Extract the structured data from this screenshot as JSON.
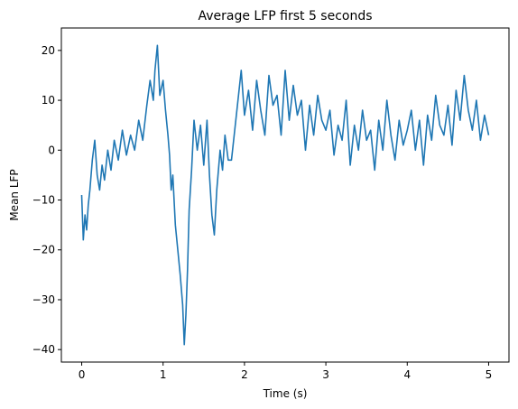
{
  "chart_data": {
    "type": "line",
    "title": "Average LFP first 5 seconds",
    "xlabel": "Time (s)",
    "ylabel": "Mean LFP",
    "xlim": [
      -0.25,
      5.25
    ],
    "ylim": [
      -42.5,
      24.5
    ],
    "xticks": [
      0,
      1,
      2,
      3,
      4,
      5
    ],
    "yticks": [
      -40,
      -30,
      -20,
      -10,
      0,
      10,
      20
    ],
    "grid": false,
    "legend": "none",
    "series": [
      {
        "color": "#1f77b4",
        "x": [
          0.0,
          0.02,
          0.04,
          0.06,
          0.08,
          0.1,
          0.13,
          0.16,
          0.19,
          0.22,
          0.25,
          0.28,
          0.32,
          0.36,
          0.4,
          0.45,
          0.5,
          0.55,
          0.6,
          0.65,
          0.7,
          0.75,
          0.8,
          0.84,
          0.88,
          0.9,
          0.93,
          0.96,
          1.0,
          1.03,
          1.06,
          1.08,
          1.1,
          1.12,
          1.15,
          1.18,
          1.21,
          1.24,
          1.26,
          1.28,
          1.3,
          1.32,
          1.35,
          1.38,
          1.42,
          1.46,
          1.5,
          1.54,
          1.57,
          1.6,
          1.63,
          1.66,
          1.7,
          1.73,
          1.76,
          1.8,
          1.84,
          1.88,
          1.92,
          1.96,
          2.0,
          2.05,
          2.1,
          2.15,
          2.2,
          2.25,
          2.3,
          2.35,
          2.4,
          2.45,
          2.5,
          2.55,
          2.6,
          2.65,
          2.7,
          2.75,
          2.8,
          2.85,
          2.9,
          2.95,
          3.0,
          3.05,
          3.1,
          3.15,
          3.2,
          3.25,
          3.3,
          3.35,
          3.4,
          3.45,
          3.5,
          3.55,
          3.6,
          3.65,
          3.7,
          3.75,
          3.8,
          3.85,
          3.9,
          3.95,
          4.0,
          4.05,
          4.1,
          4.15,
          4.2,
          4.25,
          4.3,
          4.35,
          4.4,
          4.45,
          4.5,
          4.55,
          4.6,
          4.65,
          4.7,
          4.75,
          4.8,
          4.85,
          4.9,
          4.95,
          5.0
        ],
        "y": [
          -9,
          -18,
          -13,
          -16,
          -11,
          -8,
          -2,
          2,
          -5,
          -8,
          -3,
          -6,
          0,
          -4,
          2,
          -2,
          4,
          -1,
          3,
          0,
          6,
          2,
          9,
          14,
          10,
          16,
          21,
          11,
          14,
          8,
          3,
          -1,
          -8,
          -5,
          -15,
          -20,
          -25,
          -31,
          -39,
          -33,
          -24,
          -12,
          -4,
          6,
          0,
          5,
          -3,
          6,
          -5,
          -13,
          -17,
          -8,
          0,
          -4,
          3,
          -2,
          -2,
          4,
          10,
          16,
          7,
          12,
          4,
          14,
          8,
          3,
          15,
          9,
          11,
          3,
          16,
          6,
          13,
          7,
          10,
          0,
          9,
          3,
          11,
          6,
          4,
          8,
          -1,
          5,
          2,
          10,
          -3,
          5,
          0,
          8,
          2,
          4,
          -4,
          6,
          0,
          10,
          3,
          -2,
          6,
          1,
          4,
          8,
          0,
          6,
          -3,
          7,
          2,
          11,
          5,
          3,
          9,
          1,
          12,
          6,
          15,
          8,
          4,
          10,
          2,
          7,
          3
        ]
      }
    ]
  }
}
